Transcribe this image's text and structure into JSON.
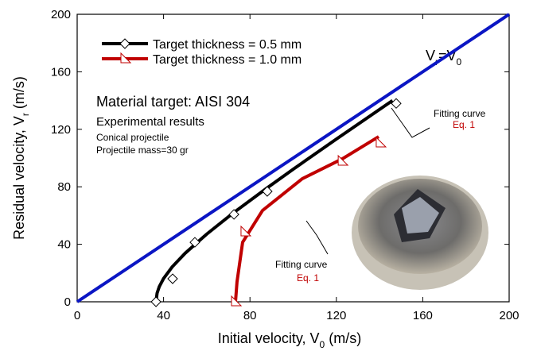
{
  "chart_data": {
    "type": "line",
    "x_label": [
      "Initial velocity, V",
      "0",
      " (m/s)"
    ],
    "y_label": [
      "Residual velocity, V",
      "r",
      " (m/s)"
    ],
    "xlim": [
      0,
      200
    ],
    "ylim": [
      0,
      200
    ],
    "xticks": [
      0,
      40,
      80,
      120,
      160,
      200
    ],
    "yticks": [
      0,
      40,
      80,
      120,
      160,
      200
    ],
    "grid": false,
    "reference_line": {
      "label": [
        "V",
        "r",
        "=V",
        "0"
      ],
      "color": "#0b16c4",
      "x": [
        0,
        200
      ],
      "values": [
        0,
        200
      ]
    },
    "series": [
      {
        "name": "Target thickness = 0.5 mm",
        "color": "#000000",
        "marker": "diamond",
        "x": [
          36.5,
          37,
          38,
          40,
          44,
          50,
          60,
          72,
          88,
          100,
          120,
          146
        ],
        "values": [
          0,
          6,
          10.5,
          16.2,
          24.3,
          33.8,
          47.1,
          61.5,
          79.3,
          92.2,
          113.2,
          140
        ],
        "marker_x": [
          36.5,
          44.2,
          54.5,
          72.6,
          88,
          147.7
        ],
        "marker_values": [
          0,
          16,
          41.4,
          60.8,
          76.8,
          138
        ]
      },
      {
        "name": "Target thickness = 1.0 mm",
        "color": "#c00000",
        "marker": "triangle",
        "x": [
          73.3,
          74,
          76.6,
          85.8,
          104.2,
          122.7,
          139.6
        ],
        "values": [
          0,
          13.8,
          41.4,
          63.5,
          85.6,
          99.4,
          114.9
        ],
        "marker_x": [
          73.3,
          77.7,
          122.7,
          140.3
        ],
        "marker_values": [
          0,
          48.6,
          97.8,
          110.5
        ]
      }
    ],
    "notes": [
      "Material target: AISI 304",
      "Experimental results",
      "Conical projectile",
      "Projectile mass=30 gr"
    ],
    "fit_annotations": [
      {
        "text": "Fitting curve",
        "eq": "Eq. 1"
      },
      {
        "text": "Fitting curve",
        "eq": "Eq. 1"
      }
    ]
  }
}
